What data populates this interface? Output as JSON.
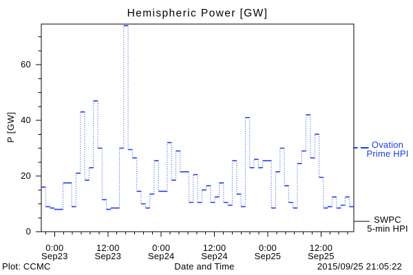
{
  "chart_data": {
    "type": "line",
    "title": "Hemispheric Power [GW]",
    "xlabel": "Date and Time",
    "ylabel": "P [GW]",
    "ylim": [
      0,
      74.5
    ],
    "grid": false,
    "legend_position": "right-outside",
    "line_color": "#1c3de2",
    "axis_color": "#000000",
    "y_ticks": {
      "major_values": [
        0,
        20,
        40,
        60
      ],
      "major_labels": [
        "0",
        "20",
        "40",
        "60"
      ],
      "minor_step": 5,
      "minor_max": 70
    },
    "x_ticks": {
      "minor_step_hours": 2,
      "majors": [
        {
          "time": "0:00",
          "date": "Sep23",
          "hour": 3
        },
        {
          "time": "12:00",
          "date": "Sep23",
          "hour": 15
        },
        {
          "time": "0:00",
          "date": "Sep24",
          "hour": 27
        },
        {
          "time": "12:00",
          "date": "Sep24",
          "hour": 39
        },
        {
          "time": "0:00",
          "date": "Sep25",
          "hour": 51
        },
        {
          "time": "12:00",
          "date": "Sep25",
          "hour": 63
        }
      ]
    },
    "series": [
      {
        "name": "Ovation Prime HPI",
        "color": "#1c3de2",
        "line_style": "dotted-step",
        "cadence_hours": 1,
        "values": [
          16,
          9,
          8.5,
          8,
          8,
          17.5,
          17.5,
          9,
          21,
          43,
          18.5,
          23,
          47,
          30,
          11.5,
          8,
          8.5,
          8.5,
          30,
          74,
          29.5,
          26.5,
          14.5,
          10,
          8.5,
          13.5,
          25.5,
          14.5,
          14.5,
          32,
          18.5,
          29,
          21.5,
          21.5,
          10.5,
          20.5,
          10.5,
          15,
          16.5,
          10.5,
          12.5,
          17.5,
          10.5,
          9.5,
          25.5,
          13.5,
          9,
          41,
          23,
          26,
          23,
          25.5,
          25.5,
          8.5,
          21.5,
          30,
          16.5,
          10.5,
          8.5,
          24.5,
          29,
          42,
          26.5,
          35,
          19.5,
          8.5,
          9,
          12.5,
          8.5,
          9.5,
          12.5,
          9
        ]
      },
      {
        "name": "SWPC 5-min HPI",
        "color": "#000000",
        "line_style": "solid",
        "values": []
      }
    ],
    "legend": [
      {
        "lines": [
          "Ovation",
          "Prime HPI"
        ],
        "color": "#1c3de2",
        "marker": "dashed"
      },
      {
        "lines": [
          "SWPC",
          "5-min HPI"
        ],
        "color": "#000000",
        "marker": "solid"
      }
    ]
  },
  "footer": {
    "credit": "Plot: CCMC",
    "timestamp": "2015/09/25 21:05:22"
  }
}
